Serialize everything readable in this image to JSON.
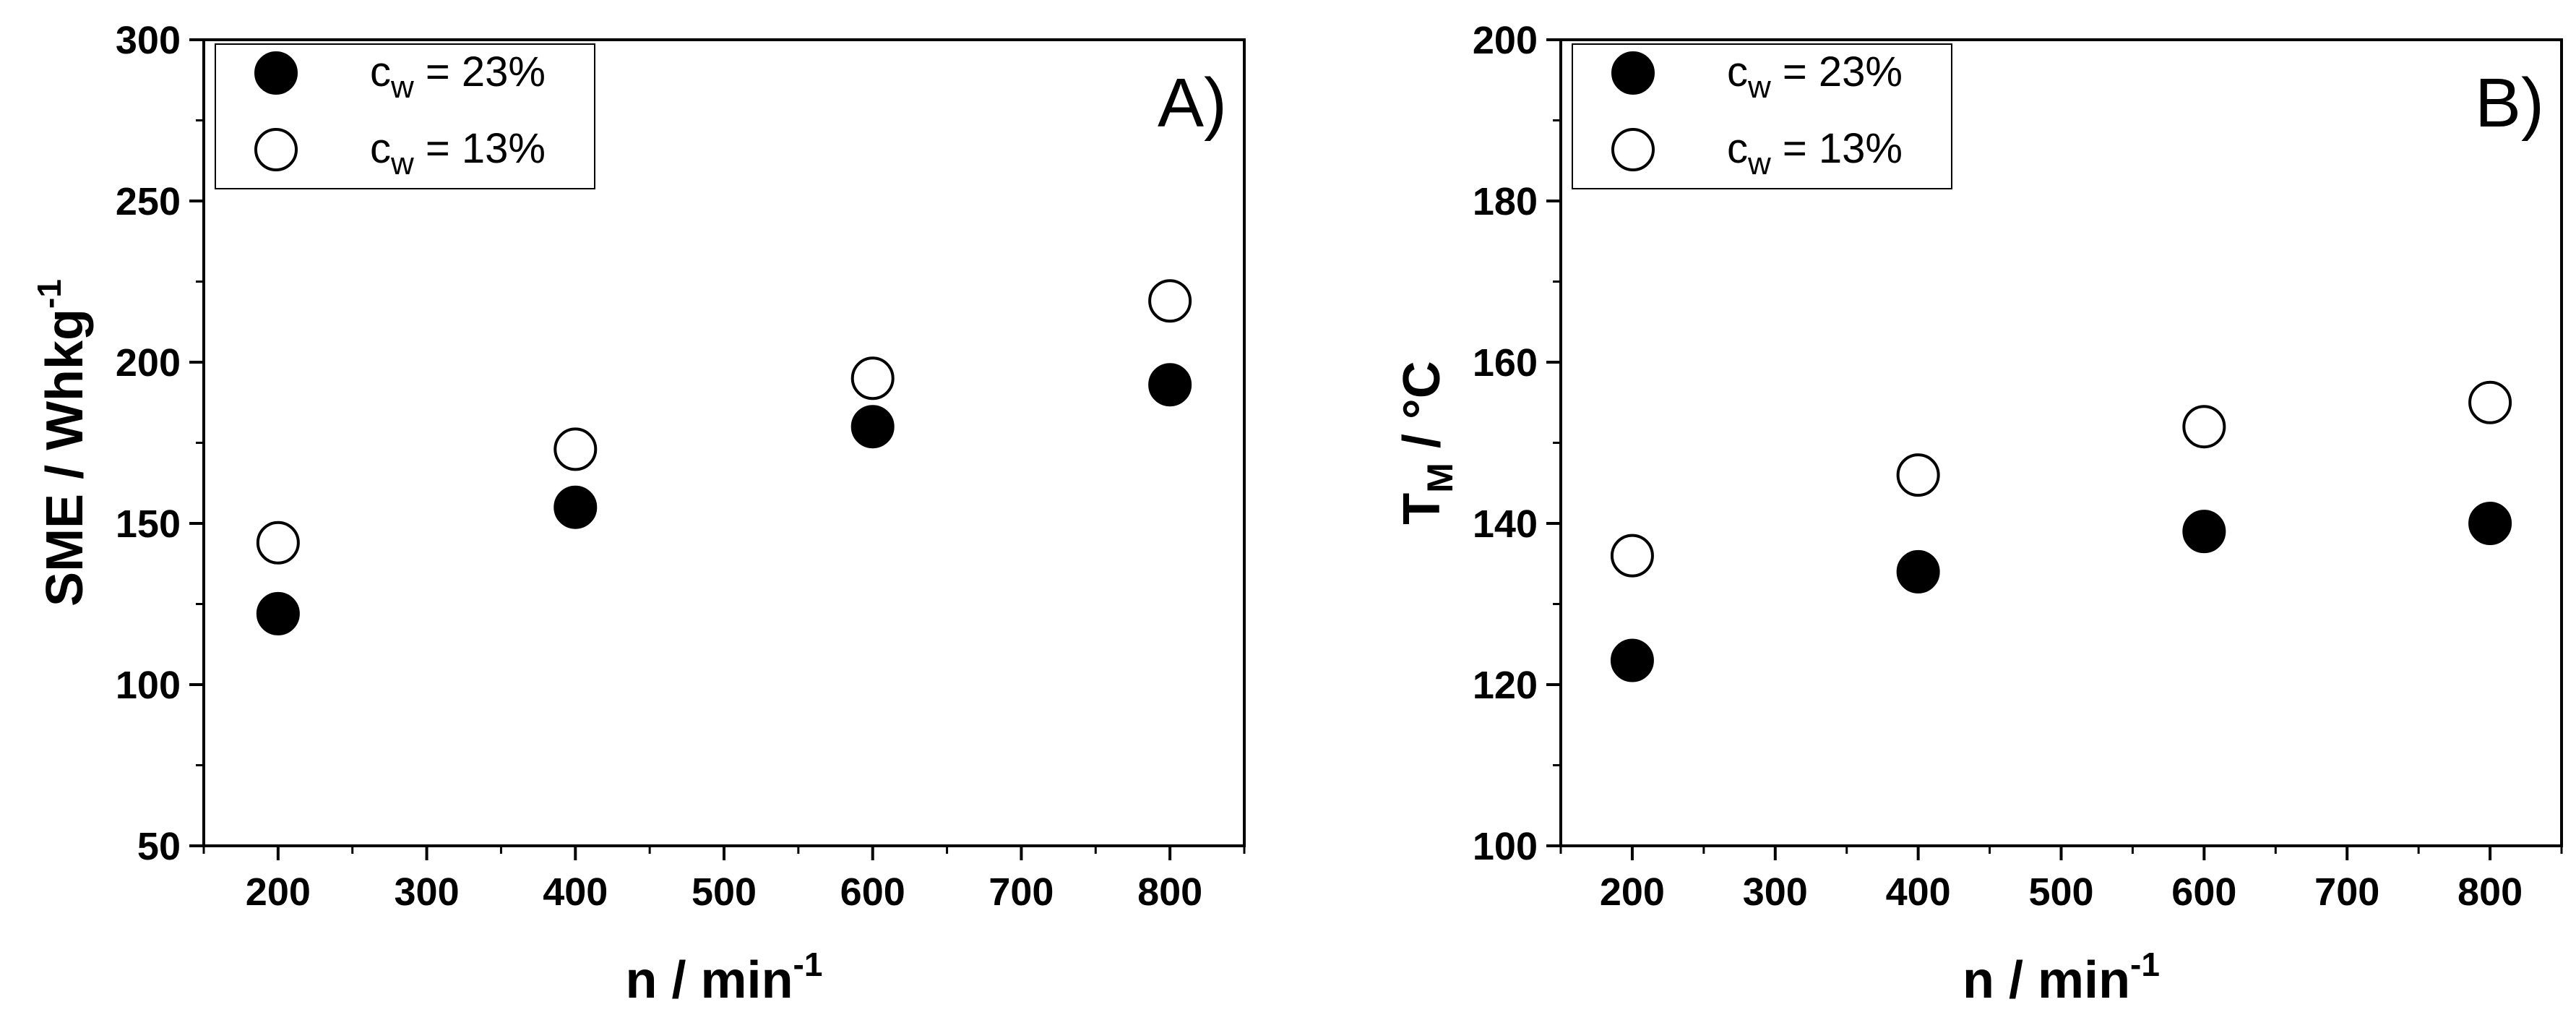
{
  "chart_data": [
    {
      "type": "scatter",
      "panel_label": "A)",
      "xlabel": {
        "base": "n / min",
        "sup": "-1"
      },
      "ylabel": {
        "base": "SME / Whkg",
        "sup": "-1"
      },
      "xlim": [
        150,
        850
      ],
      "ylim": [
        50,
        300
      ],
      "xticks": [
        200,
        300,
        400,
        500,
        600,
        700,
        800
      ],
      "yticks": [
        50,
        100,
        150,
        200,
        250,
        300
      ],
      "x_minor_step": 50,
      "y_minor_step": 25,
      "grid": false,
      "legend_position": "top-left",
      "series": [
        {
          "legend": {
            "base": "c",
            "sub": "w",
            "rest": " = 23%"
          },
          "marker": "filled-circle",
          "color": "#000000",
          "points": [
            {
              "x": 200,
              "y": 122
            },
            {
              "x": 400,
              "y": 155
            },
            {
              "x": 600,
              "y": 180
            },
            {
              "x": 800,
              "y": 193
            }
          ]
        },
        {
          "legend": {
            "base": "c",
            "sub": "w",
            "rest": " = 13%"
          },
          "marker": "open-circle",
          "color": "#000000",
          "points": [
            {
              "x": 200,
              "y": 144
            },
            {
              "x": 400,
              "y": 173
            },
            {
              "x": 600,
              "y": 195
            },
            {
              "x": 800,
              "y": 219
            }
          ]
        }
      ]
    },
    {
      "type": "scatter",
      "panel_label": "B)",
      "xlabel": {
        "base": "n / min",
        "sup": "-1"
      },
      "ylabel": {
        "base": "T",
        "sub": "M",
        "rest": " / °C"
      },
      "xlim": [
        150,
        850
      ],
      "ylim": [
        100,
        200
      ],
      "xticks": [
        200,
        300,
        400,
        500,
        600,
        700,
        800
      ],
      "yticks": [
        100,
        120,
        140,
        160,
        180,
        200
      ],
      "x_minor_step": 50,
      "y_minor_step": 10,
      "grid": false,
      "legend_position": "top-left",
      "series": [
        {
          "legend": {
            "base": "c",
            "sub": "w",
            "rest": " = 23%"
          },
          "marker": "filled-circle",
          "color": "#000000",
          "points": [
            {
              "x": 200,
              "y": 123
            },
            {
              "x": 400,
              "y": 134
            },
            {
              "x": 600,
              "y": 139
            },
            {
              "x": 800,
              "y": 140
            }
          ]
        },
        {
          "legend": {
            "base": "c",
            "sub": "w",
            "rest": " = 13%"
          },
          "marker": "open-circle",
          "color": "#000000",
          "points": [
            {
              "x": 200,
              "y": 136
            },
            {
              "x": 400,
              "y": 146
            },
            {
              "x": 600,
              "y": 152
            },
            {
              "x": 800,
              "y": 155
            }
          ]
        }
      ]
    }
  ]
}
